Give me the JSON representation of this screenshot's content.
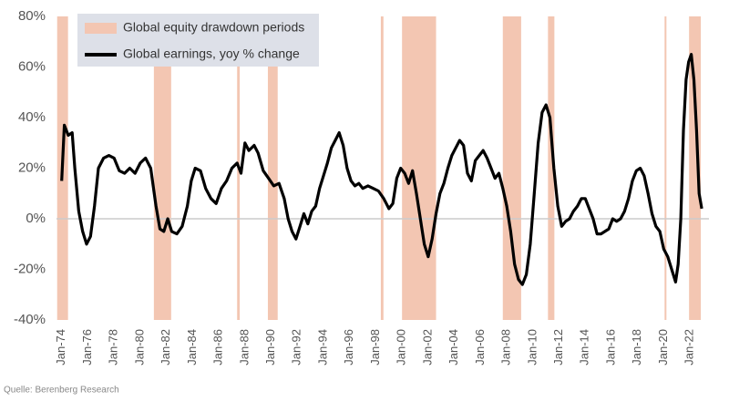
{
  "chart_data": {
    "type": "line",
    "source": "Quelle: Berenberg Research",
    "bands": {
      "name": "Global equity drawdown periods",
      "color": "#f3c6b2",
      "periods": [
        [
          1973.65,
          1974.48
        ],
        [
          1981.04,
          1982.36
        ],
        [
          1987.4,
          1987.6
        ],
        [
          1989.75,
          1990.5
        ],
        [
          1998.38,
          1998.58
        ],
        [
          2000.0,
          2002.6
        ],
        [
          2007.7,
          2009.1
        ],
        [
          2011.15,
          2011.64
        ],
        [
          2020.06,
          2020.2
        ],
        [
          2021.93,
          2022.83
        ]
      ]
    },
    "x": [
      1974.0,
      1974.2,
      1974.5,
      1974.8,
      1975.0,
      1975.3,
      1975.6,
      1975.9,
      1976.2,
      1976.5,
      1976.8,
      1977.2,
      1977.6,
      1978.0,
      1978.4,
      1978.8,
      1979.2,
      1979.6,
      1980.0,
      1980.4,
      1980.8,
      1981.2,
      1981.5,
      1981.8,
      1982.1,
      1982.4,
      1982.8,
      1983.2,
      1983.6,
      1983.9,
      1984.2,
      1984.6,
      1985.0,
      1985.4,
      1985.8,
      1986.2,
      1986.6,
      1987.0,
      1987.4,
      1987.7,
      1988.0,
      1988.3,
      1988.7,
      1989.0,
      1989.4,
      1989.8,
      1990.2,
      1990.6,
      1991.0,
      1991.3,
      1991.6,
      1991.9,
      1992.2,
      1992.5,
      1992.8,
      1993.1,
      1993.4,
      1993.7,
      1994.0,
      1994.3,
      1994.6,
      1994.9,
      1995.2,
      1995.5,
      1995.8,
      1996.1,
      1996.4,
      1996.7,
      1997.0,
      1997.4,
      1997.8,
      1998.2,
      1998.6,
      1999.0,
      1999.3,
      1999.6,
      1999.9,
      2000.2,
      2000.5,
      2000.8,
      2001.1,
      2001.4,
      2001.7,
      2002.0,
      2002.3,
      2002.6,
      2002.9,
      2003.2,
      2003.5,
      2003.8,
      2004.1,
      2004.4,
      2004.7,
      2005.0,
      2005.3,
      2005.6,
      2005.9,
      2006.2,
      2006.5,
      2006.8,
      2007.1,
      2007.4,
      2007.7,
      2008.0,
      2008.3,
      2008.6,
      2008.9,
      2009.2,
      2009.5,
      2009.8,
      2010.1,
      2010.4,
      2010.7,
      2011.0,
      2011.3,
      2011.6,
      2011.9,
      2012.2,
      2012.5,
      2012.8,
      2013.1,
      2013.4,
      2013.7,
      2014.0,
      2014.3,
      2014.6,
      2014.9,
      2015.2,
      2015.5,
      2015.8,
      2016.1,
      2016.4,
      2016.7,
      2017.0,
      2017.3,
      2017.6,
      2017.9,
      2018.2,
      2018.5,
      2018.8,
      2019.1,
      2019.4,
      2019.7,
      2020.0,
      2020.3,
      2020.6,
      2020.9,
      2021.1,
      2021.3,
      2021.5,
      2021.7,
      2021.9,
      2022.1,
      2022.3,
      2022.5,
      2022.7,
      2022.9
    ],
    "series": [
      {
        "name": "Global earnings, yoy % change",
        "color": "#000000",
        "values": [
          15,
          37,
          33,
          34,
          20,
          3,
          -5,
          -10,
          -7,
          5,
          20,
          24,
          25,
          24,
          19,
          18,
          20,
          18,
          22,
          24,
          20,
          5,
          -4,
          -5,
          0,
          -5,
          -6,
          -3,
          5,
          15,
          20,
          19,
          12,
          8,
          6,
          12,
          15,
          20,
          22,
          18,
          30,
          27,
          29,
          26,
          19,
          16,
          13,
          14,
          8,
          0,
          -5,
          -8,
          -3,
          2,
          -2,
          3,
          5,
          12,
          17,
          22,
          28,
          31,
          34,
          29,
          20,
          15,
          13,
          14,
          12,
          13,
          12,
          11,
          8,
          4,
          6,
          16,
          20,
          18,
          14,
          19,
          10,
          0,
          -10,
          -15,
          -8,
          2,
          10,
          14,
          20,
          25,
          28,
          31,
          29,
          18,
          15,
          23,
          25,
          27,
          24,
          20,
          16,
          18,
          12,
          5,
          -5,
          -18,
          -24,
          -26,
          -22,
          -10,
          10,
          30,
          42,
          45,
          40,
          20,
          5,
          -3,
          -1,
          0,
          3,
          5,
          8,
          8,
          4,
          0,
          -6,
          -6,
          -5,
          -4,
          0,
          -1,
          0,
          3,
          8,
          15,
          19,
          20,
          17,
          10,
          2,
          -3,
          -5,
          -12,
          -15,
          -20,
          -25,
          -18,
          0,
          35,
          55,
          62,
          65,
          55,
          35,
          10,
          4
        ]
      }
    ],
    "xlim": [
      1973.6,
      2023.45
    ],
    "ylim": [
      -40,
      80
    ],
    "yticks": [
      {
        "value": -40,
        "label": "-40%"
      },
      {
        "value": -20,
        "label": "-20%"
      },
      {
        "value": 0,
        "label": "0%"
      },
      {
        "value": 20,
        "label": "20%"
      },
      {
        "value": 40,
        "label": "40%"
      },
      {
        "value": 60,
        "label": "60%"
      },
      {
        "value": 80,
        "label": "80%"
      }
    ],
    "xticks": [
      {
        "value": 1974,
        "label": "Jan-74"
      },
      {
        "value": 1976,
        "label": "Jan-76"
      },
      {
        "value": 1978,
        "label": "Jan-78"
      },
      {
        "value": 1980,
        "label": "Jan-80"
      },
      {
        "value": 1982,
        "label": "Jan-82"
      },
      {
        "value": 1984,
        "label": "Jan-84"
      },
      {
        "value": 1986,
        "label": "Jan-86"
      },
      {
        "value": 1988,
        "label": "Jan-88"
      },
      {
        "value": 1990,
        "label": "Jan-90"
      },
      {
        "value": 1992,
        "label": "Jan-92"
      },
      {
        "value": 1994,
        "label": "Jan-94"
      },
      {
        "value": 1996,
        "label": "Jan-96"
      },
      {
        "value": 1998,
        "label": "Jan-98"
      },
      {
        "value": 2000,
        "label": "Jan-00"
      },
      {
        "value": 2002,
        "label": "Jan-02"
      },
      {
        "value": 2004,
        "label": "Jan-04"
      },
      {
        "value": 2006,
        "label": "Jan-06"
      },
      {
        "value": 2008,
        "label": "Jan-08"
      },
      {
        "value": 2010,
        "label": "Jan-10"
      },
      {
        "value": 2012,
        "label": "Jan-12"
      },
      {
        "value": 2014,
        "label": "Jan-14"
      },
      {
        "value": 2016,
        "label": "Jan-16"
      },
      {
        "value": 2018,
        "label": "Jan-18"
      },
      {
        "value": 2020,
        "label": "Jan-20"
      },
      {
        "value": 2022,
        "label": "Jan-22"
      }
    ]
  }
}
